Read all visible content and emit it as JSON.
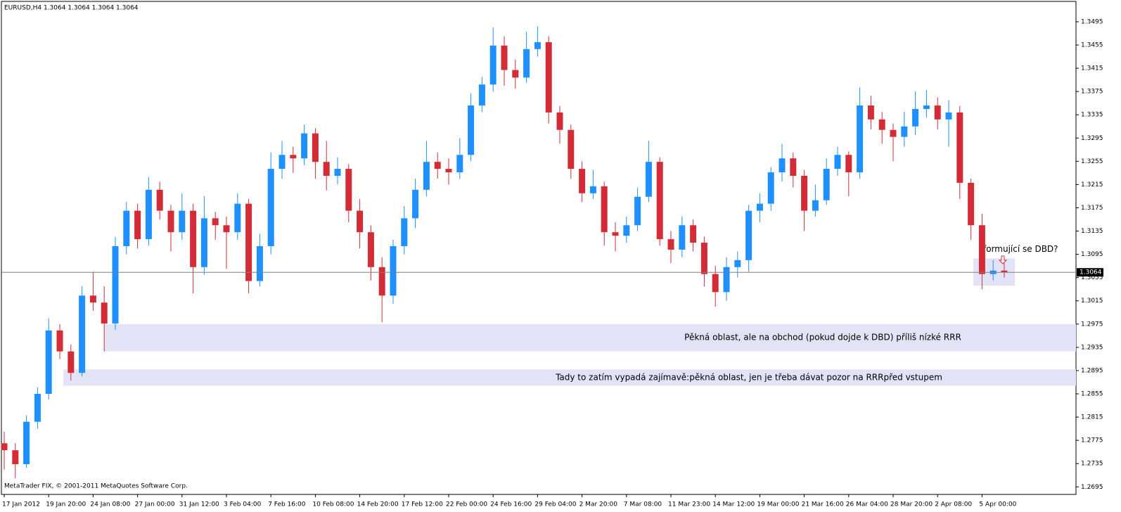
{
  "chart_data": {
    "type": "candlestick",
    "title": "EURUSD,H4  1.3064 1.3064 1.3064 1.3064",
    "footer": "MetaTrader FIX, © 2001-2011 MetaQuotes Software Corp.",
    "categories": [
      "17 Jan 2012",
      null,
      null,
      null,
      "19 Jan 20:00",
      null,
      null,
      null,
      "24 Jan 08:00",
      null,
      null,
      null,
      "27 Jan 00:00",
      null,
      null,
      null,
      "31 Jan 12:00",
      null,
      null,
      null,
      "3 Feb 04:00",
      null,
      null,
      null,
      "7 Feb 16:00",
      null,
      null,
      null,
      "10 Feb 08:00",
      null,
      null,
      null,
      "14 Feb 20:00",
      null,
      null,
      null,
      "17 Feb 12:00",
      null,
      null,
      null,
      "22 Feb 00:00",
      null,
      null,
      null,
      "24 Feb 16:00",
      null,
      null,
      null,
      "29 Feb 04:00",
      null,
      null,
      null,
      "2 Mar 20:00",
      null,
      null,
      null,
      "7 Mar 08:00",
      null,
      null,
      null,
      "11 Mar 23:00",
      null,
      null,
      null,
      "14 Mar 12:00",
      null,
      null,
      null,
      "19 Mar 00:00",
      null,
      null,
      null,
      "21 Mar 16:00",
      null,
      null,
      null,
      "26 Mar 04:00",
      null,
      null,
      null,
      "28 Mar 20:00",
      null,
      null,
      null,
      "2 Apr 08:00",
      null,
      null,
      null,
      "5 Apr 00:00",
      null,
      null
    ],
    "open": [
      1.277,
      1.2758,
      1.2734,
      1.2807,
      1.2855,
      1.2964,
      1.2928,
      1.2891,
      1.3024,
      1.3012,
      1.2976,
      1.3109,
      1.317,
      1.3121,
      1.3206,
      1.317,
      1.3133,
      1.317,
      1.3073,
      1.3157,
      1.3145,
      1.3133,
      1.3182,
      1.3049,
      1.3109,
      1.3242,
      1.3266,
      1.326,
      1.3303,
      1.3254,
      1.323,
      1.3242,
      1.317,
      1.3133,
      1.3073,
      1.3024,
      1.3109,
      1.3157,
      1.3206,
      1.3254,
      1.3242,
      1.3236,
      1.3266,
      1.3351,
      1.3387,
      1.3454,
      1.3412,
      1.3399,
      1.3448,
      1.346,
      1.3339,
      1.3309,
      1.3242,
      1.32,
      1.3212,
      1.3133,
      1.3127,
      1.3145,
      1.3194,
      1.3254,
      1.3121,
      1.3103,
      1.3145,
      1.3115,
      1.3061,
      1.303,
      1.3073,
      1.3085,
      1.317,
      1.3182,
      1.3236,
      1.326,
      1.323,
      1.317,
      1.3188,
      1.3242,
      1.3266,
      1.3236,
      1.3351,
      1.3327,
      1.3309,
      1.3297,
      1.3315,
      1.3345,
      1.3351,
      1.3327,
      1.3339,
      1.3218,
      1.3145,
      1.3061,
      1.3067
    ],
    "high": [
      1.279,
      1.277,
      1.2818,
      1.2866,
      1.2985,
      1.2975,
      1.294,
      1.304,
      1.3065,
      1.304,
      1.3125,
      1.3185,
      1.3182,
      1.3228,
      1.322,
      1.318,
      1.32,
      1.3182,
      1.3195,
      1.3168,
      1.316,
      1.32,
      1.319,
      1.313,
      1.327,
      1.329,
      1.328,
      1.3318,
      1.3312,
      1.329,
      1.3262,
      1.325,
      1.319,
      1.3145,
      1.309,
      1.312,
      1.3178,
      1.3225,
      1.329,
      1.327,
      1.326,
      1.3295,
      1.3372,
      1.34,
      1.3485,
      1.347,
      1.343,
      1.3478,
      1.3487,
      1.347,
      1.335,
      1.3318,
      1.3255,
      1.324,
      1.322,
      1.315,
      1.316,
      1.321,
      1.329,
      1.3262,
      1.3135,
      1.316,
      1.3155,
      1.3125,
      1.3075,
      1.309,
      1.31,
      1.318,
      1.32,
      1.3245,
      1.3285,
      1.327,
      1.324,
      1.3215,
      1.326,
      1.328,
      1.3272,
      1.3382,
      1.3368,
      1.334,
      1.332,
      1.334,
      1.3375,
      1.3378,
      1.3365,
      1.336,
      1.335,
      1.3225,
      1.3165,
      1.3085,
      1.308
    ],
    "low": [
      1.2725,
      1.271,
      1.2728,
      1.2795,
      1.2845,
      1.2915,
      1.2878,
      1.2885,
      1.2998,
      1.2928,
      1.2965,
      1.3095,
      1.3105,
      1.311,
      1.3155,
      1.31,
      1.312,
      1.3028,
      1.306,
      1.312,
      1.307,
      1.312,
      1.3028,
      1.304,
      1.3095,
      1.3225,
      1.3235,
      1.3248,
      1.3225,
      1.3205,
      1.3215,
      1.315,
      1.3105,
      1.305,
      1.2978,
      1.301,
      1.3095,
      1.314,
      1.3195,
      1.3225,
      1.3215,
      1.3225,
      1.3255,
      1.334,
      1.3375,
      1.3385,
      1.338,
      1.339,
      1.3435,
      1.332,
      1.3285,
      1.3225,
      1.3185,
      1.319,
      1.311,
      1.31,
      1.3115,
      1.3135,
      1.3185,
      1.311,
      1.308,
      1.309,
      1.31,
      1.304,
      1.3005,
      1.3015,
      1.3055,
      1.3065,
      1.315,
      1.317,
      1.322,
      1.321,
      1.3135,
      1.316,
      1.318,
      1.323,
      1.3195,
      1.3225,
      1.331,
      1.3285,
      1.3255,
      1.328,
      1.33,
      1.333,
      1.331,
      1.328,
      1.319,
      1.312,
      1.3035,
      1.305,
      1.3055
    ],
    "close": [
      1.2758,
      1.2734,
      1.2807,
      1.2855,
      1.2964,
      1.2928,
      1.2891,
      1.3024,
      1.3012,
      1.2976,
      1.3109,
      1.317,
      1.3121,
      1.3206,
      1.317,
      1.3133,
      1.317,
      1.3073,
      1.3157,
      1.3145,
      1.3133,
      1.3182,
      1.3049,
      1.3109,
      1.3242,
      1.3266,
      1.326,
      1.3303,
      1.3254,
      1.323,
      1.3242,
      1.317,
      1.3133,
      1.3073,
      1.3024,
      1.3109,
      1.3157,
      1.3206,
      1.3254,
      1.3242,
      1.3236,
      1.3266,
      1.3351,
      1.3387,
      1.3454,
      1.3412,
      1.3399,
      1.3448,
      1.346,
      1.3339,
      1.3309,
      1.3242,
      1.32,
      1.3212,
      1.3133,
      1.3127,
      1.3145,
      1.3194,
      1.3254,
      1.3121,
      1.3103,
      1.3145,
      1.3115,
      1.3061,
      1.303,
      1.3073,
      1.3085,
      1.317,
      1.3182,
      1.3236,
      1.326,
      1.323,
      1.317,
      1.3188,
      1.3242,
      1.3266,
      1.3236,
      1.3351,
      1.3327,
      1.3309,
      1.3297,
      1.3315,
      1.3345,
      1.3351,
      1.3327,
      1.3339,
      1.3218,
      1.3145,
      1.3061,
      1.3067,
      1.3064
    ],
    "up_color": "#1e90ff",
    "down_color": "#d42c36",
    "ylim": [
      1.2682,
      1.353
    ],
    "yticks": [
      1.2695,
      1.2735,
      1.2775,
      1.2815,
      1.2855,
      1.2895,
      1.2935,
      1.2975,
      1.3015,
      1.3055,
      1.3095,
      1.3135,
      1.3175,
      1.3215,
      1.3255,
      1.3295,
      1.3335,
      1.3375,
      1.3415,
      1.3455,
      1.3495
    ],
    "grid": false,
    "last_price": 1.3064,
    "zones": [
      {
        "top": 1.2975,
        "bottom": 1.2928,
        "label": "Pěkná oblast, ale na obchod (pokud dojde k DBD) příliš nízké RRR"
      },
      {
        "top": 1.2897,
        "bottom": 1.2869,
        "label": "Tady to zatím vypadá zajímavě:pěkná oblast, jen je třeba dávat pozor na RRRpřed vstupem"
      },
      {
        "top": 1.3088,
        "bottom": 1.3041,
        "label": "formující se DBD?"
      }
    ],
    "zone_color": "#e3e3f7"
  }
}
